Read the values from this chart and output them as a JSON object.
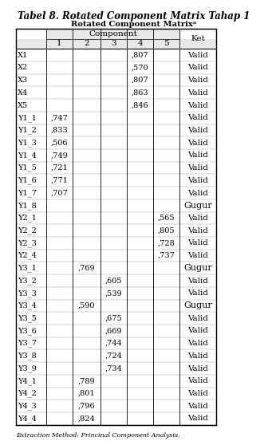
{
  "title_plain": "Tabel 8. ",
  "title_italic": "Rotated Component Matrix",
  "title_plain2": " Tahap 1",
  "subtitle": "Rotated Component Matrixᵃ",
  "col_header_main": "Component",
  "col_headers": [
    "1",
    "2",
    "3",
    "4",
    "5"
  ],
  "ket_header": "Ket",
  "rows": [
    {
      "label": "X1",
      "c1": "",
      "c2": "",
      "c3": "",
      "c4": ",807",
      "c5": "",
      "ket": "Valid"
    },
    {
      "label": "X2",
      "c1": "",
      "c2": "",
      "c3": "",
      "c4": ",570",
      "c5": "",
      "ket": "Valid"
    },
    {
      "label": "X3",
      "c1": "",
      "c2": "",
      "c3": "",
      "c4": ",807",
      "c5": "",
      "ket": "Valid"
    },
    {
      "label": "X4",
      "c1": "",
      "c2": "",
      "c3": "",
      "c4": ",863",
      "c5": "",
      "ket": "Valid"
    },
    {
      "label": "X5",
      "c1": "",
      "c2": "",
      "c3": "",
      "c4": ",846",
      "c5": "",
      "ket": "Valid"
    },
    {
      "label": "Y1_1",
      "c1": ",747",
      "c2": "",
      "c3": "",
      "c4": "",
      "c5": "",
      "ket": "Valid"
    },
    {
      "label": "Y1_2",
      "c1": ",833",
      "c2": "",
      "c3": "",
      "c4": "",
      "c5": "",
      "ket": "Valid"
    },
    {
      "label": "Y1_3",
      "c1": ",506",
      "c2": "",
      "c3": "",
      "c4": "",
      "c5": "",
      "ket": "Valid"
    },
    {
      "label": "Y1_4",
      "c1": ",749",
      "c2": "",
      "c3": "",
      "c4": "",
      "c5": "",
      "ket": "Valid"
    },
    {
      "label": "Y1_5",
      "c1": ",721",
      "c2": "",
      "c3": "",
      "c4": "",
      "c5": "",
      "ket": "Valid"
    },
    {
      "label": "Y1_6",
      "c1": ",771",
      "c2": "",
      "c3": "",
      "c4": "",
      "c5": "",
      "ket": "Valid"
    },
    {
      "label": "Y1_7",
      "c1": ",707",
      "c2": "",
      "c3": "",
      "c4": "",
      "c5": "",
      "ket": "Valid"
    },
    {
      "label": "Y1_8",
      "c1": "",
      "c2": "",
      "c3": "",
      "c4": "",
      "c5": "",
      "ket": "Gugur"
    },
    {
      "label": "Y2_1",
      "c1": "",
      "c2": "",
      "c3": "",
      "c4": "",
      "c5": ",565",
      "ket": "Valid"
    },
    {
      "label": "Y2_2",
      "c1": "",
      "c2": "",
      "c3": "",
      "c4": "",
      "c5": ",805",
      "ket": "Valid"
    },
    {
      "label": "Y2_3",
      "c1": "",
      "c2": "",
      "c3": "",
      "c4": "",
      "c5": ",728",
      "ket": "Valid"
    },
    {
      "label": "Y2_4",
      "c1": "",
      "c2": "",
      "c3": "",
      "c4": "",
      "c5": ",737",
      "ket": "Valid"
    },
    {
      "label": "Y3_1",
      "c1": "",
      "c2": ",769",
      "c3": "",
      "c4": "",
      "c5": "",
      "ket": "Gugur"
    },
    {
      "label": "Y3_2",
      "c1": "",
      "c2": "",
      "c3": ",605",
      "c4": "",
      "c5": "",
      "ket": "Valid"
    },
    {
      "label": "Y3_3",
      "c1": "",
      "c2": "",
      "c3": ",539",
      "c4": "",
      "c5": "",
      "ket": "Valid"
    },
    {
      "label": "Y3_4",
      "c1": "",
      "c2": ",590",
      "c3": "",
      "c4": "",
      "c5": "",
      "ket": "Gugur"
    },
    {
      "label": "Y3_5",
      "c1": "",
      "c2": "",
      "c3": ",675",
      "c4": "",
      "c5": "",
      "ket": "Valid"
    },
    {
      "label": "Y3_6",
      "c1": "",
      "c2": "",
      "c3": ",669",
      "c4": "",
      "c5": "",
      "ket": "Valid"
    },
    {
      "label": "Y3_7",
      "c1": "",
      "c2": "",
      "c3": ",744",
      "c4": "",
      "c5": "",
      "ket": "Valid"
    },
    {
      "label": "Y3_8",
      "c1": "",
      "c2": "",
      "c3": ",724",
      "c4": "",
      "c5": "",
      "ket": "Valid"
    },
    {
      "label": "Y3_9",
      "c1": "",
      "c2": "",
      "c3": ",734",
      "c4": "",
      "c5": "",
      "ket": "Valid"
    },
    {
      "label": "Y4_1",
      "c1": "",
      "c2": ",789",
      "c3": "",
      "c4": "",
      "c5": "",
      "ket": "Valid"
    },
    {
      "label": "Y4_2",
      "c1": "",
      "c2": ",801",
      "c3": "",
      "c4": "",
      "c5": "",
      "ket": "Valid"
    },
    {
      "label": "Y4_3",
      "c1": "",
      "c2": ",796",
      "c3": "",
      "c4": "",
      "c5": "",
      "ket": "Valid"
    },
    {
      "label": "Y4_4",
      "c1": "",
      "c2": ",824",
      "c3": "",
      "c4": "",
      "c5": "",
      "ket": "Valid"
    }
  ],
  "footnote": "Extraction Method: Princinal Component Analysis.",
  "bg_color": "#ffffff",
  "header_bg": "#e8e8e8",
  "border_color": "#000000",
  "title_fontsize": 8.5,
  "cell_fontsize": 7.0,
  "header_fontsize": 7.5,
  "gugur_fontsize": 8.0,
  "valid_fontsize": 7.5
}
